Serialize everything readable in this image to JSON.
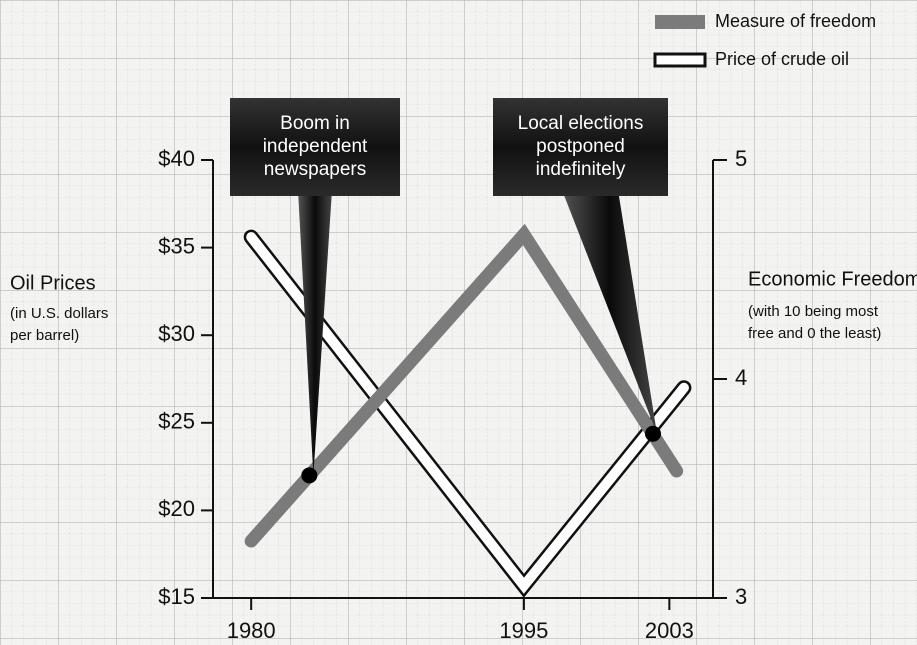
{
  "chart_data": {
    "type": "line",
    "xlim": [
      1977.9,
      2005.4
    ],
    "xticks": [
      1980,
      1995,
      2003
    ],
    "ylim": [
      15,
      40
    ],
    "yticks": [
      {
        "value": 15,
        "label": "$15"
      },
      {
        "value": 20,
        "label": "$20"
      },
      {
        "value": 25,
        "label": "$25"
      },
      {
        "value": 30,
        "label": "$30"
      },
      {
        "value": 35,
        "label": "$35"
      },
      {
        "value": 40,
        "label": "$40"
      }
    ],
    "y2lim": [
      3,
      5
    ],
    "y2ticks": [
      3,
      4,
      5
    ],
    "ylabel": "Oil Prices",
    "ylabel_note": [
      "(in U.S. dollars",
      "per barrel)"
    ],
    "y2label": "Economic Freedom",
    "y2label_note": [
      "(with 10 being most",
      "free and 0 the least)"
    ],
    "legend": "top-right",
    "series": [
      {
        "name": "Measure of freedom",
        "color": "#7b7b7b",
        "axis": "y2",
        "x": [
          1980,
          1995,
          2003.4
        ],
        "values": [
          3.26,
          4.66,
          3.58
        ]
      },
      {
        "name": "Price of crude oil",
        "color": "#ffffff",
        "x": [
          1980,
          1995,
          2003.8
        ],
        "values": [
          35.6,
          15.7,
          27.0
        ]
      }
    ],
    "annotations": [
      {
        "text": [
          "Boom in",
          "independent",
          "newspapers"
        ],
        "x": 1983.2,
        "y": 3.56,
        "axis": "y2"
      },
      {
        "text": [
          "Local elections",
          "postponed",
          "indefinitely"
        ],
        "x": 2002.1,
        "y": 3.75,
        "axis": "y2"
      }
    ]
  }
}
